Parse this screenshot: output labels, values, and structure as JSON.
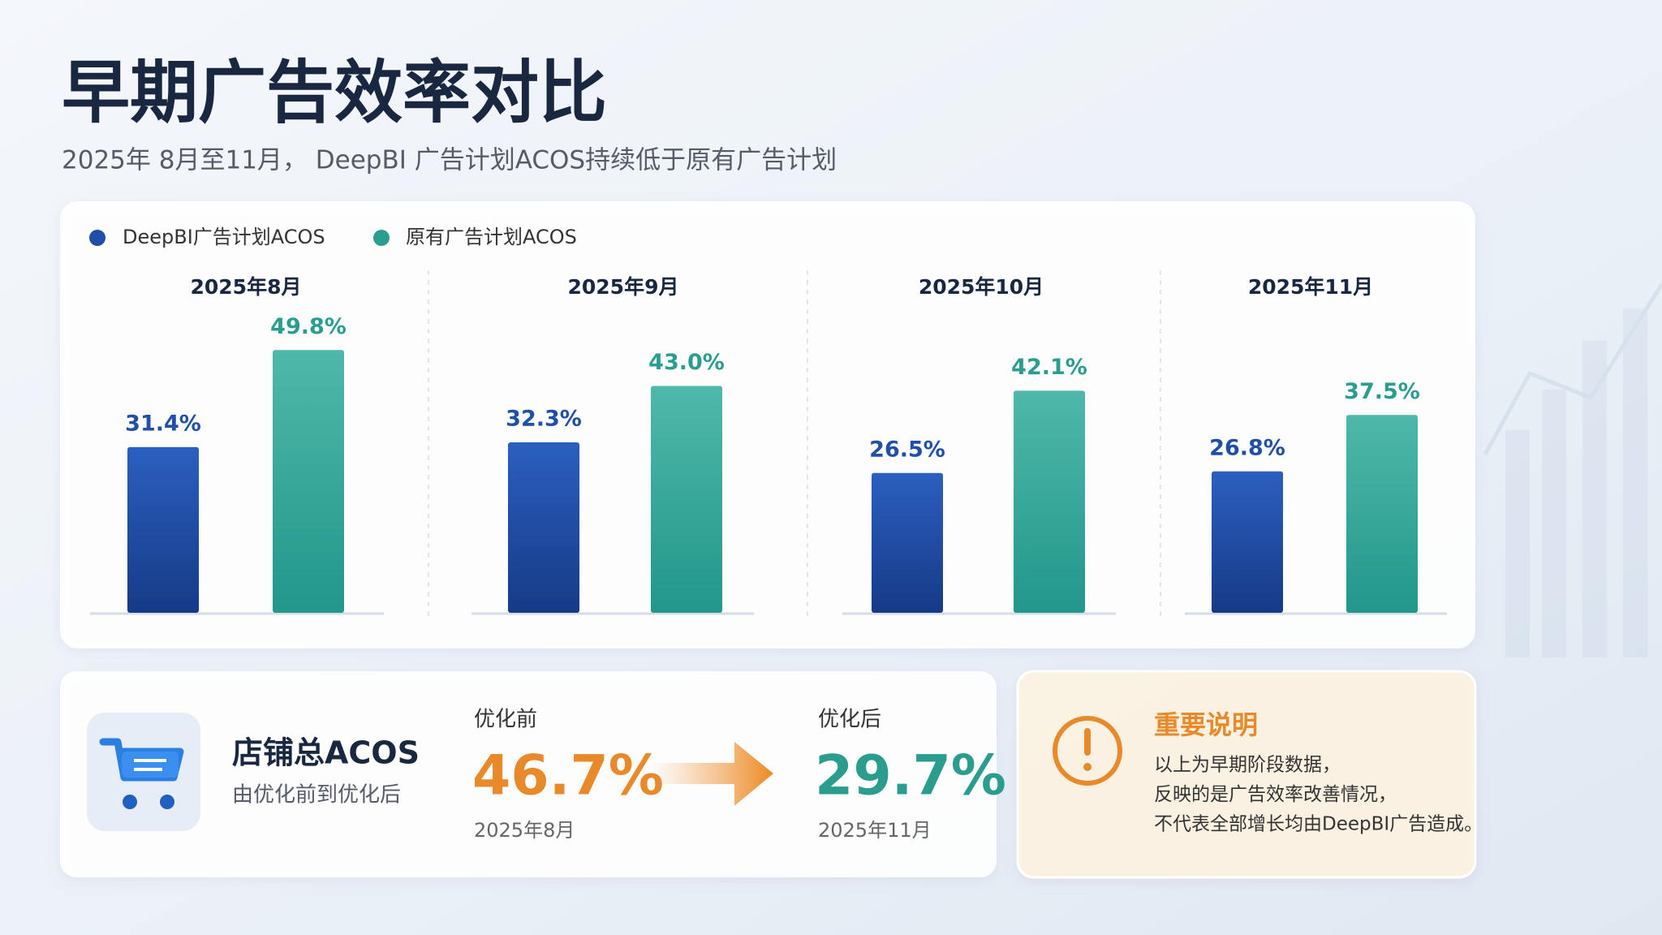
{
  "chart_data": {
    "type": "bar",
    "title": "早期广告效率对比",
    "subtitle": "2025年 8月至11月， DeepBI 广告计划ACOS持续低于原有广告计划",
    "categories": [
      "2025年8月",
      "2025年9月",
      "2025年10月",
      "2025年11月"
    ],
    "series": [
      {
        "name": "DeepBI广告计划ACOS",
        "color": "#1f4fa8",
        "values": [
          31.4,
          32.3,
          26.5,
          26.8
        ],
        "value_labels": [
          "31.4%",
          "32.3%",
          "26.5%",
          "26.8%"
        ]
      },
      {
        "name": "原有广告计划ACOS",
        "color": "#2a9d8f",
        "values": [
          49.8,
          43.0,
          42.1,
          37.5
        ],
        "value_labels": [
          "49.8%",
          "43.0%",
          "42.1%",
          "37.5%"
        ]
      }
    ],
    "legend": "top-left"
  },
  "summary": {
    "title": "店铺总ACOS",
    "subtitle": "由优化前到优化后",
    "before_label": "优化前",
    "before_value": "46.7%",
    "before_date": "2025年8月",
    "after_label": "优化后",
    "after_value": "29.7%",
    "after_date": "2025年11月"
  },
  "notice": {
    "title": "重要说明",
    "lines": [
      "以上为早期阶段数据，",
      "反映的是广告效率改善情况，",
      "不代表全部增长均由DeepBI广告造成。"
    ]
  }
}
